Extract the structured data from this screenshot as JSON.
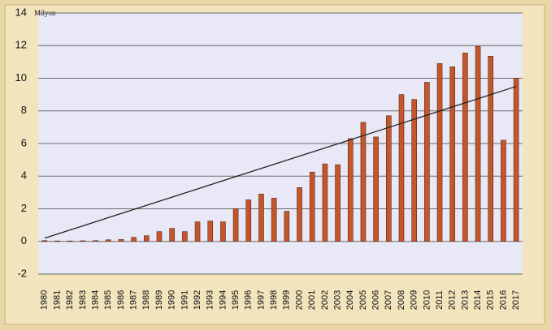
{
  "chart_data": {
    "type": "bar",
    "unit_label": "Milyon",
    "categories": [
      "1980",
      "1981",
      "1982",
      "1983",
      "1984",
      "1985",
      "1986",
      "1987",
      "1988",
      "1989",
      "1990",
      "1991",
      "1992",
      "1993",
      "1994",
      "1995",
      "1996",
      "1997",
      "1998",
      "1999",
      "2000",
      "2001",
      "2002",
      "2003",
      "2004",
      "2005",
      "2006",
      "2007",
      "2008",
      "2009",
      "2010",
      "2011",
      "2012",
      "2013",
      "2014",
      "2015",
      "2016",
      "2017"
    ],
    "values": [
      0.05,
      0.03,
      0.03,
      0.04,
      0.05,
      0.1,
      0.12,
      0.25,
      0.35,
      0.6,
      0.8,
      0.6,
      1.2,
      1.25,
      1.2,
      2.0,
      2.55,
      2.9,
      2.65,
      1.85,
      3.3,
      4.25,
      4.75,
      4.7,
      6.3,
      7.3,
      6.4,
      7.7,
      9.0,
      8.7,
      9.75,
      10.9,
      10.7,
      11.55,
      11.95,
      11.35,
      6.2,
      10.0
    ],
    "color": "#c4562b",
    "trendline": [
      0.2,
      9.5
    ],
    "trendline_color": "#222222",
    "ylim": [
      -2,
      14
    ],
    "yticks": [
      -2,
      0,
      2,
      4,
      6,
      8,
      10,
      12,
      14
    ],
    "grid": true
  }
}
